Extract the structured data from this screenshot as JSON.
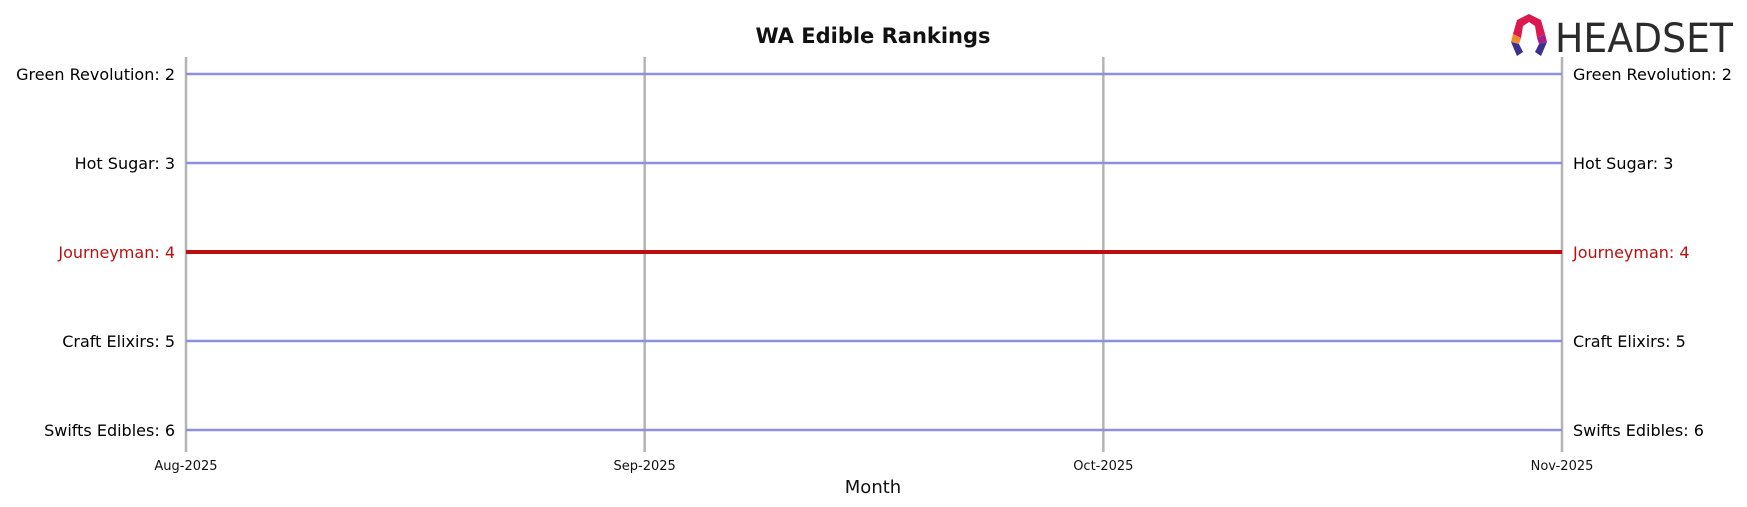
{
  "brand": {
    "logo_text": "HEADSET"
  },
  "chart_data": {
    "type": "line",
    "title": "WA Edible Rankings",
    "xlabel": "Month",
    "ylabel": "",
    "x": [
      "Aug-2025",
      "Sep-2025",
      "Oct-2025",
      "Nov-2025"
    ],
    "y_inverted": true,
    "ylim": [
      6,
      2
    ],
    "grid": {
      "vertical": true,
      "horizontal": false
    },
    "series": [
      {
        "name": "Green Revolution",
        "values": [
          2,
          2,
          2,
          2
        ],
        "label_left": "Green Revolution: 2",
        "label_right": "Green Revolution: 2",
        "color": "#8f8fdf",
        "highlight": false
      },
      {
        "name": "Hot Sugar",
        "values": [
          3,
          3,
          3,
          3
        ],
        "label_left": "Hot Sugar: 3",
        "label_right": "Hot Sugar: 3",
        "color": "#8f8fdf",
        "highlight": false
      },
      {
        "name": "Journeyman",
        "values": [
          4,
          4,
          4,
          4
        ],
        "label_left": "Journeyman: 4",
        "label_right": "Journeyman: 4",
        "color": "#bb0f0f",
        "highlight": true
      },
      {
        "name": "Craft Elixirs",
        "values": [
          5,
          5,
          5,
          5
        ],
        "label_left": "Craft Elixirs: 5",
        "label_right": "Craft Elixirs: 5",
        "color": "#8f8fdf",
        "highlight": false
      },
      {
        "name": "Swifts Edibles",
        "values": [
          6,
          6,
          6,
          6
        ],
        "label_left": "Swifts Edibles: 6",
        "label_right": "Swifts Edibles: 6",
        "color": "#8f8fdf",
        "highlight": false
      }
    ],
    "colors": {
      "default": "#8f8fdf",
      "highlight": "#bb0f0f",
      "grid": "#b4b4b4",
      "text": "#000000"
    }
  }
}
